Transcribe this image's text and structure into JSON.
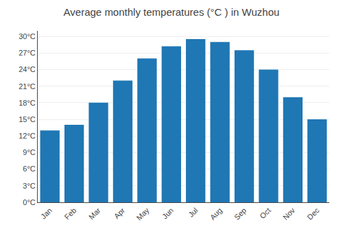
{
  "chart_data": {
    "type": "bar",
    "title": "Average monthly temperatures (°C ) in Wuzhou",
    "categories": [
      "Jan",
      "Feb",
      "Mar",
      "Apr",
      "May",
      "Jun",
      "Jul",
      "Aug",
      "Sep",
      "Oct",
      "Nov",
      "Dec"
    ],
    "values": [
      13.0,
      14.0,
      18.0,
      22.0,
      26.0,
      28.2,
      29.5,
      29.0,
      27.5,
      24.0,
      19.0,
      15.0
    ],
    "ylim": [
      0,
      31
    ],
    "yticks": [
      {
        "value": 0,
        "label": "0°C"
      },
      {
        "value": 3,
        "label": "3°C"
      },
      {
        "value": 6,
        "label": "6°C"
      },
      {
        "value": 9,
        "label": "9°C"
      },
      {
        "value": 12,
        "label": "12°C"
      },
      {
        "value": 15,
        "label": "15°C"
      },
      {
        "value": 18,
        "label": "18°C"
      },
      {
        "value": 21,
        "label": "21°C"
      },
      {
        "value": 24,
        "label": "24°C"
      },
      {
        "value": 27,
        "label": "27°C"
      },
      {
        "value": 30,
        "label": "30°C"
      }
    ],
    "grid": true
  }
}
